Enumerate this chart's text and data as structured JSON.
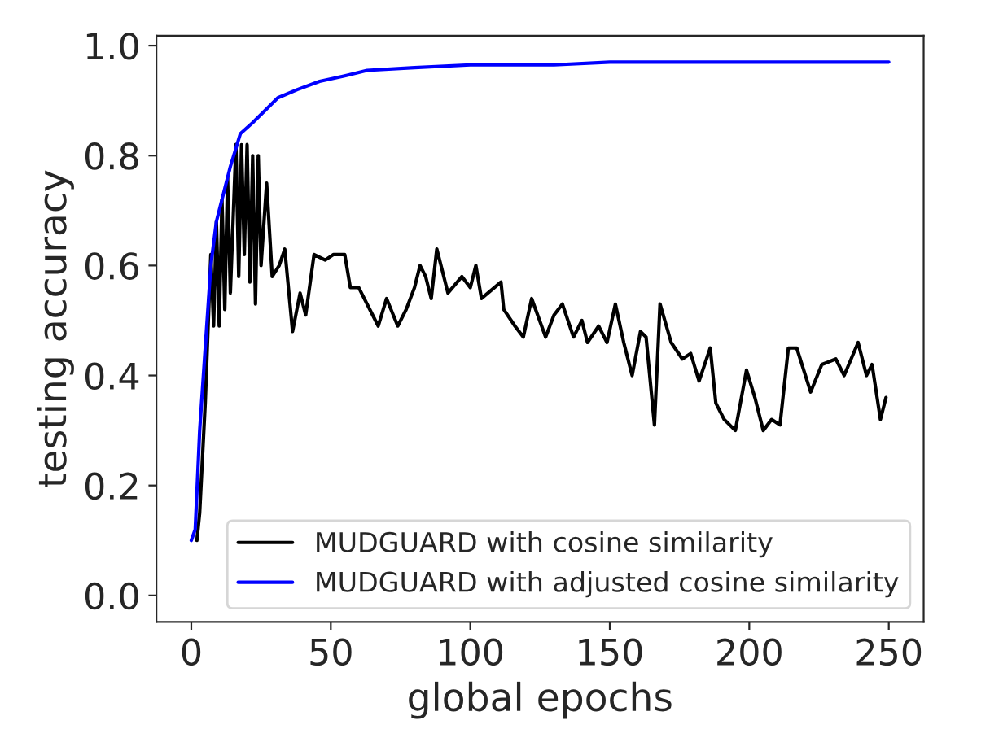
{
  "chart_data": {
    "type": "line",
    "xlabel": "global epochs",
    "ylabel": "testing accuracy",
    "xlim": [
      -12.5,
      262.5
    ],
    "xticks": [
      0,
      50,
      100,
      150,
      200,
      250
    ],
    "ylim": [
      -0.048,
      1.018
    ],
    "yticks": [
      {
        "value": 0,
        "label": "0.0"
      },
      0.2,
      0.4,
      0.6,
      0.8,
      {
        "value": 1,
        "label": "1.0"
      }
    ],
    "grid": false,
    "legend": "bottom right",
    "line_style": "solid",
    "marker": "none",
    "series": [
      {
        "name": "MUDGUARD with cosine similarity",
        "color": "#000000",
        "x": [
          2,
          3,
          5,
          7,
          8,
          9,
          10,
          11,
          12,
          13,
          14,
          16,
          17,
          18,
          19,
          20,
          21,
          22,
          23,
          24,
          25,
          27,
          29,
          31.5,
          33.5,
          36.3,
          39,
          41,
          44,
          48,
          51,
          55,
          57,
          60,
          64,
          67,
          70,
          74,
          77,
          80,
          82,
          84,
          86,
          88,
          92,
          97,
          100,
          102,
          104,
          111,
          112,
          116,
          119,
          122,
          127,
          130,
          133,
          137,
          140,
          142,
          146,
          149,
          152,
          155,
          158,
          161,
          163,
          166,
          168,
          172,
          176,
          179,
          182,
          186,
          188,
          191,
          195,
          199,
          202,
          205,
          208,
          211,
          214,
          217,
          222,
          226,
          231,
          234,
          239,
          242,
          244,
          247,
          249
        ],
        "values": [
          0.1,
          0.15,
          0.35,
          0.62,
          0.49,
          0.68,
          0.49,
          0.72,
          0.52,
          0.76,
          0.55,
          0.82,
          0.58,
          0.82,
          0.62,
          0.82,
          0.57,
          0.8,
          0.53,
          0.8,
          0.6,
          0.75,
          0.58,
          0.6,
          0.63,
          0.48,
          0.55,
          0.51,
          0.62,
          0.61,
          0.62,
          0.62,
          0.56,
          0.56,
          0.52,
          0.49,
          0.54,
          0.49,
          0.52,
          0.56,
          0.6,
          0.58,
          0.54,
          0.63,
          0.55,
          0.58,
          0.56,
          0.6,
          0.54,
          0.57,
          0.52,
          0.49,
          0.47,
          0.54,
          0.47,
          0.51,
          0.53,
          0.47,
          0.5,
          0.46,
          0.49,
          0.46,
          0.53,
          0.46,
          0.4,
          0.48,
          0.47,
          0.31,
          0.53,
          0.46,
          0.43,
          0.44,
          0.39,
          0.45,
          0.35,
          0.32,
          0.3,
          0.41,
          0.36,
          0.3,
          0.32,
          0.31,
          0.45,
          0.45,
          0.37,
          0.42,
          0.43,
          0.4,
          0.46,
          0.4,
          0.42,
          0.32,
          0.36
        ]
      },
      {
        "name": "MUDGUARD with adjusted cosine similarity",
        "color": "#0000ff",
        "x": [
          0,
          1.4,
          3,
          5,
          7,
          9,
          12,
          14,
          17.6,
          22,
          26,
          31,
          38,
          46,
          55,
          63,
          80,
          100,
          130,
          150,
          180,
          210,
          250
        ],
        "values": [
          0.1,
          0.12,
          0.3,
          0.45,
          0.6,
          0.68,
          0.74,
          0.78,
          0.84,
          0.86,
          0.88,
          0.905,
          0.92,
          0.935,
          0.945,
          0.955,
          0.96,
          0.965,
          0.965,
          0.97,
          0.97,
          0.97,
          0.97
        ]
      }
    ]
  }
}
